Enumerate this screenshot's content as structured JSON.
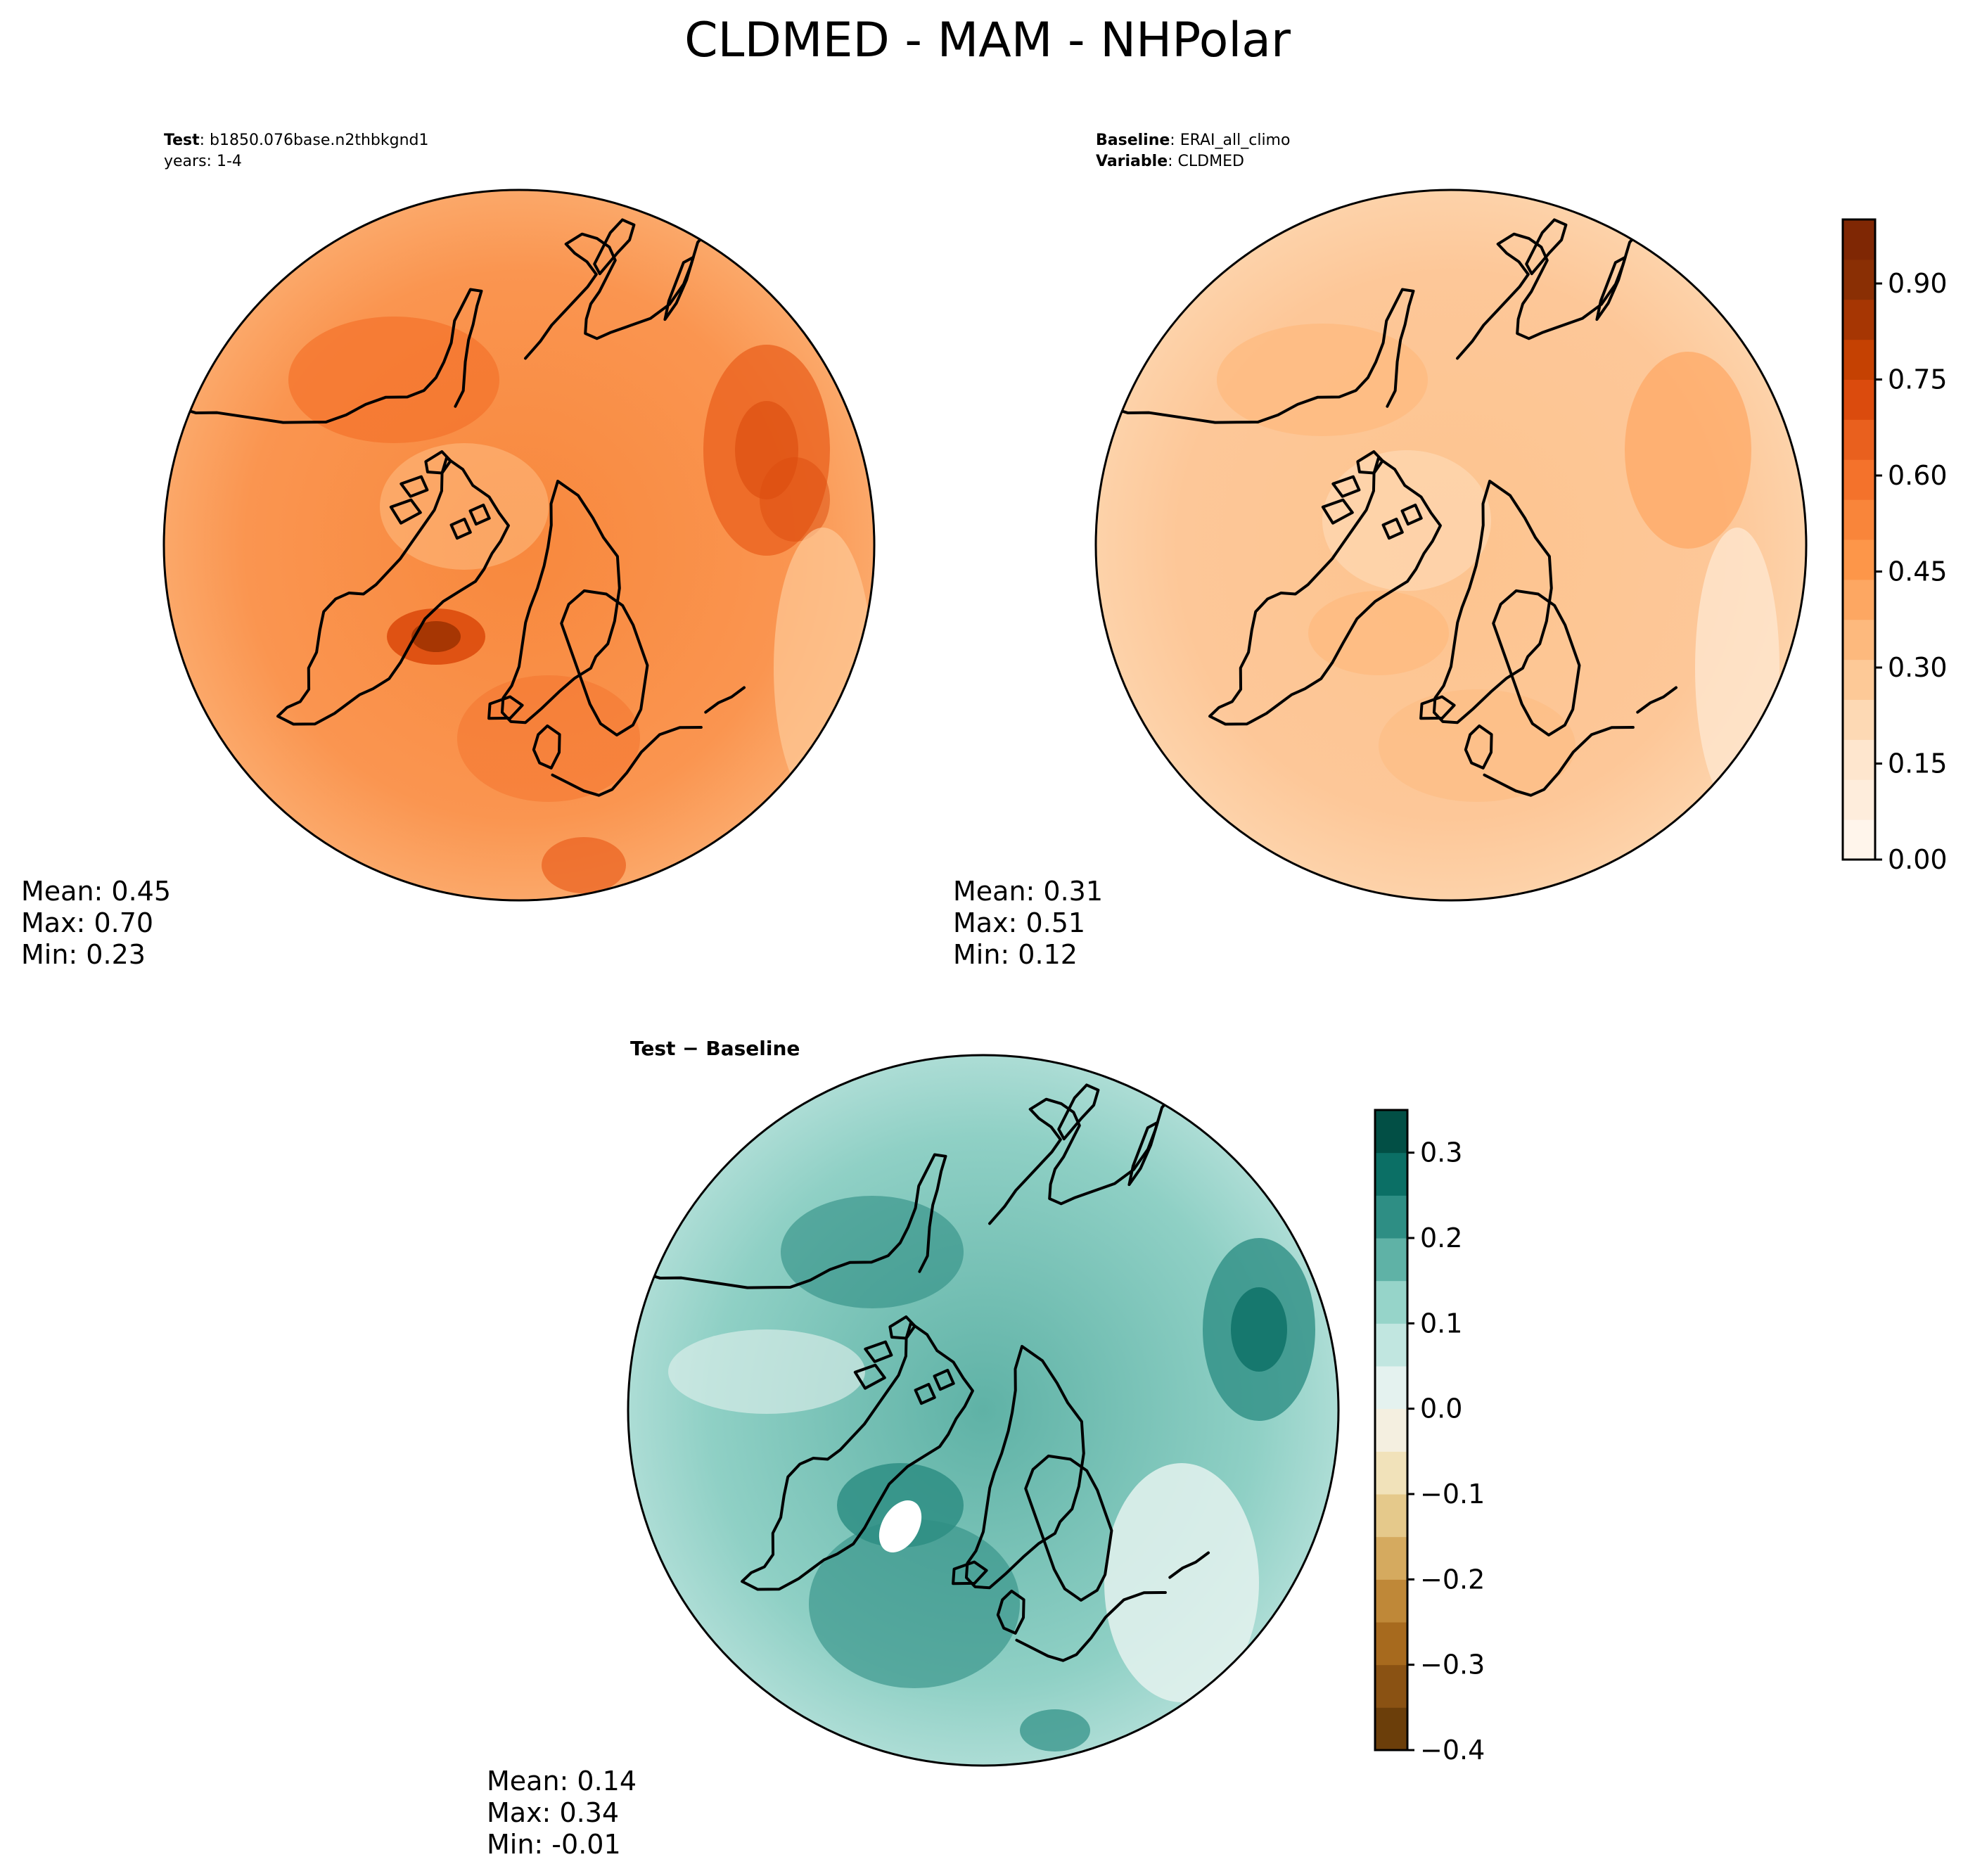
{
  "title": "CLDMED - MAM - NHPolar",
  "panels": {
    "test": {
      "label_key": "Test",
      "label_value": ": b1850.076base.n2thbkgnd1",
      "line2": "years: 1-4",
      "stats": {
        "mean": "Mean:  0.45",
        "max": "Max:  0.70",
        "min": "Min:  0.23"
      }
    },
    "baseline": {
      "label_key": "Baseline",
      "label_value": ": ERAI_all_climo",
      "line2_key": "Variable",
      "line2_value": ": CLDMED",
      "stats": {
        "mean": "Mean:  0.31",
        "max": "Max:  0.51",
        "min": "Min:  0.12"
      }
    },
    "diff": {
      "label": "Test − Baseline",
      "stats": {
        "mean": "Mean:  0.14",
        "max": "Max:  0.34",
        "min": "Min: -0.01"
      }
    }
  },
  "colorbar_main": {
    "min": 0.0,
    "max": 1.0,
    "ticks": [
      0.0,
      0.15,
      0.3,
      0.45,
      0.6,
      0.75,
      0.9
    ],
    "tick_labels": [
      "0.00",
      "0.15",
      "0.30",
      "0.45",
      "0.60",
      "0.75",
      "0.90"
    ],
    "colors": [
      "#fff5eb",
      "#feeddc",
      "#fee6ce",
      "#fdd9b4",
      "#fdc997",
      "#fdb97d",
      "#fda762",
      "#fd9649",
      "#f9853a",
      "#f4722b",
      "#e9601e",
      "#db4b0d",
      "#c54102",
      "#a63603",
      "#8a2f04",
      "#7f2704"
    ]
  },
  "colorbar_diff": {
    "min": -0.4,
    "max": 0.35,
    "ticks": [
      -0.4,
      -0.3,
      -0.2,
      -0.1,
      0.0,
      0.1,
      0.2,
      0.3
    ],
    "tick_labels": [
      "−0.4",
      "−0.3",
      "−0.2",
      "−0.1",
      "0.0",
      "0.1",
      "0.2",
      "0.3"
    ],
    "colors": [
      "#6b3e0a",
      "#8a5213",
      "#a76a1e",
      "#bf8838",
      "#d5aa5f",
      "#e5c98b",
      "#f1e2ba",
      "#f4efe0",
      "#e4f2ef",
      "#c1e6e0",
      "#96d4c9",
      "#5fb2a6",
      "#2e8e84",
      "#0b6f65",
      "#024f45"
    ]
  },
  "chart_data": [
    {
      "type": "map",
      "title": "CLDMED - MAM - NHPolar",
      "panel": "Test",
      "case": "b1850.076base.n2thbkgnd1",
      "years": "1-4",
      "projection": "North Polar Stereographic",
      "mean": 0.45,
      "max": 0.7,
      "min": 0.23
    },
    {
      "type": "map",
      "panel": "Baseline",
      "case": "ERAI_all_climo",
      "variable": "CLDMED",
      "projection": "North Polar Stereographic",
      "mean": 0.31,
      "max": 0.51,
      "min": 0.12
    },
    {
      "type": "map",
      "panel": "Test − Baseline",
      "projection": "North Polar Stereographic",
      "mean": 0.14,
      "max": 0.34,
      "min": -0.01
    }
  ]
}
